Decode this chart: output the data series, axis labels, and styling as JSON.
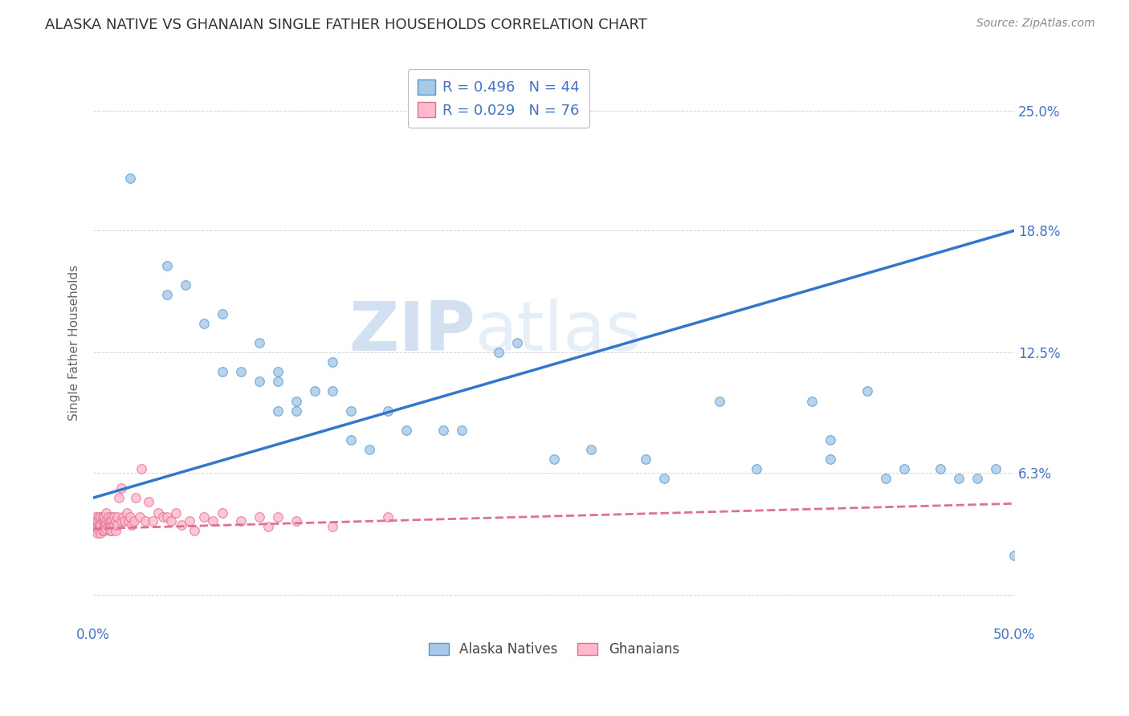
{
  "title": "ALASKA NATIVE VS GHANAIAN SINGLE FATHER HOUSEHOLDS CORRELATION CHART",
  "source": "Source: ZipAtlas.com",
  "ylabel": "Single Father Households",
  "xlim": [
    0.0,
    0.5
  ],
  "ylim": [
    -0.015,
    0.275
  ],
  "legend_blue_r": "R = 0.496",
  "legend_blue_n": "N = 44",
  "legend_pink_r": "R = 0.029",
  "legend_pink_n": "N = 76",
  "blue_fill": "#a8c8e8",
  "pink_fill": "#ffb8cc",
  "blue_edge": "#5599cc",
  "pink_edge": "#e07090",
  "line_blue_color": "#3377cc",
  "line_pink_color": "#e07090",
  "watermark_zip": "ZIP",
  "watermark_atlas": "atlas",
  "blue_scatter_x": [
    0.02,
    0.04,
    0.04,
    0.05,
    0.06,
    0.07,
    0.07,
    0.08,
    0.09,
    0.09,
    0.1,
    0.1,
    0.1,
    0.11,
    0.11,
    0.12,
    0.13,
    0.13,
    0.14,
    0.14,
    0.15,
    0.16,
    0.17,
    0.19,
    0.2,
    0.22,
    0.23,
    0.25,
    0.27,
    0.3,
    0.31,
    0.34,
    0.36,
    0.39,
    0.4,
    0.4,
    0.42,
    0.43,
    0.44,
    0.46,
    0.47,
    0.48,
    0.49,
    0.5
  ],
  "blue_scatter_y": [
    0.215,
    0.17,
    0.155,
    0.16,
    0.14,
    0.145,
    0.115,
    0.115,
    0.13,
    0.11,
    0.11,
    0.095,
    0.115,
    0.1,
    0.095,
    0.105,
    0.12,
    0.105,
    0.095,
    0.08,
    0.075,
    0.095,
    0.085,
    0.085,
    0.085,
    0.125,
    0.13,
    0.07,
    0.075,
    0.07,
    0.06,
    0.1,
    0.065,
    0.1,
    0.08,
    0.07,
    0.105,
    0.06,
    0.065,
    0.065,
    0.06,
    0.06,
    0.065,
    0.02
  ],
  "pink_scatter_x": [
    0.0,
    0.001,
    0.001,
    0.002,
    0.002,
    0.002,
    0.003,
    0.003,
    0.003,
    0.004,
    0.004,
    0.004,
    0.004,
    0.004,
    0.005,
    0.005,
    0.005,
    0.005,
    0.006,
    0.006,
    0.006,
    0.006,
    0.007,
    0.007,
    0.007,
    0.007,
    0.008,
    0.008,
    0.008,
    0.009,
    0.009,
    0.009,
    0.01,
    0.01,
    0.01,
    0.01,
    0.011,
    0.011,
    0.012,
    0.012,
    0.013,
    0.013,
    0.014,
    0.015,
    0.015,
    0.016,
    0.017,
    0.018,
    0.019,
    0.02,
    0.021,
    0.022,
    0.023,
    0.025,
    0.026,
    0.028,
    0.03,
    0.032,
    0.035,
    0.038,
    0.04,
    0.042,
    0.045,
    0.048,
    0.052,
    0.055,
    0.06,
    0.065,
    0.07,
    0.08,
    0.09,
    0.095,
    0.1,
    0.11,
    0.13,
    0.16
  ],
  "pink_scatter_y": [
    0.035,
    0.033,
    0.04,
    0.035,
    0.038,
    0.032,
    0.04,
    0.036,
    0.034,
    0.038,
    0.035,
    0.04,
    0.032,
    0.036,
    0.038,
    0.034,
    0.04,
    0.033,
    0.038,
    0.035,
    0.04,
    0.033,
    0.038,
    0.036,
    0.034,
    0.042,
    0.038,
    0.035,
    0.04,
    0.038,
    0.035,
    0.033,
    0.04,
    0.038,
    0.035,
    0.033,
    0.04,
    0.036,
    0.038,
    0.033,
    0.04,
    0.036,
    0.05,
    0.038,
    0.055,
    0.04,
    0.038,
    0.042,
    0.038,
    0.04,
    0.036,
    0.038,
    0.05,
    0.04,
    0.065,
    0.038,
    0.048,
    0.038,
    0.042,
    0.04,
    0.04,
    0.038,
    0.042,
    0.036,
    0.038,
    0.033,
    0.04,
    0.038,
    0.042,
    0.038,
    0.04,
    0.035,
    0.04,
    0.038,
    0.035,
    0.04
  ],
  "blue_line_x": [
    0.0,
    0.5
  ],
  "blue_line_y": [
    0.05,
    0.188
  ],
  "pink_line_x": [
    0.0,
    0.5
  ],
  "pink_line_y": [
    0.034,
    0.047
  ],
  "ytick_vals": [
    0.0,
    0.063,
    0.125,
    0.188,
    0.25
  ],
  "ytick_labels": [
    "",
    "6.3%",
    "12.5%",
    "18.8%",
    "25.0%"
  ],
  "xtick_positions": [
    0.0,
    0.125,
    0.25,
    0.375,
    0.5
  ],
  "xtick_labels": [
    "0.0%",
    "",
    "",
    "",
    "50.0%"
  ],
  "background_color": "#ffffff",
  "grid_color": "#cccccc",
  "axis_tick_color": "#4472c4",
  "title_color": "#333333",
  "source_color": "#888888",
  "ylabel_color": "#666666",
  "scatter_size": 70
}
